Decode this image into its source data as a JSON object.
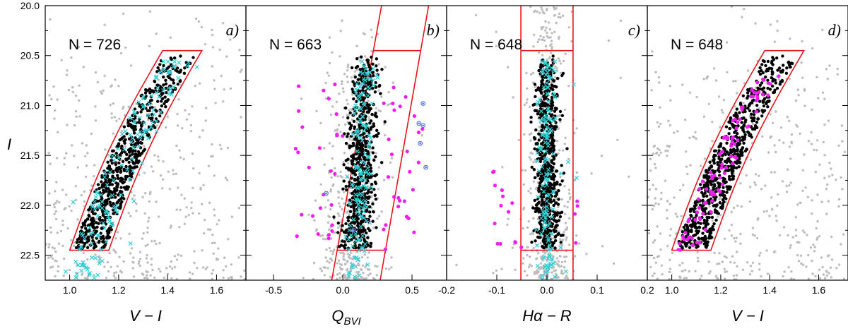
{
  "chart_data": {
    "type": "scatter",
    "figure": "Four-panel color-magnitude selection figure",
    "shared_y": {
      "label": "I",
      "ylim": [
        20.0,
        22.75
      ],
      "inverted": true,
      "ticks": [
        "20.0",
        "20.5",
        "21.0",
        "21.5",
        "22.0",
        "22.5"
      ]
    },
    "panels": [
      {
        "id": "a",
        "panel_label": "a)",
        "count_label": "N = 726",
        "xlabel": "V − I",
        "xlim": [
          0.9,
          1.72
        ],
        "xticks": [
          "1.0",
          "1.2",
          "1.4",
          "1.6"
        ],
        "selection_region": {
          "shape": "curved-band",
          "I_range": [
            20.45,
            22.45
          ],
          "left_edge": [
            [
              1.0,
              22.45
            ],
            [
              1.38,
              20.45
            ]
          ],
          "right_edge": [
            [
              1.16,
              22.45
            ],
            [
              1.54,
              20.45
            ]
          ]
        },
        "series": [
          "field stars (grey)",
          "selected members (black)",
          "known variables (cyan crosses)"
        ]
      },
      {
        "id": "b",
        "panel_label": "b)",
        "count_label": "N = 663",
        "xlabel": "Q",
        "xlabel_sub": "BVI",
        "xlim": [
          -0.7,
          0.75
        ],
        "xticks": [
          "-0.5",
          "0.0",
          "0.5"
        ],
        "selection_region": {
          "shape": "slanted-band",
          "I_range": [
            20.45,
            22.45
          ],
          "left_edge": [
            [
              -0.08,
              22.75
            ],
            [
              0.28,
              20.0
            ]
          ],
          "right_edge": [
            [
              0.27,
              22.75
            ],
            [
              0.62,
              20.0
            ]
          ]
        },
        "series": [
          "field stars (grey)",
          "selected members (black)",
          "known variables (cyan crosses)",
          "rejected (magenta)",
          "rejected (blue circled)"
        ]
      },
      {
        "id": "c",
        "panel_label": "c)",
        "count_label": "N = 648",
        "xlabel": "Hα − R",
        "xlim": [
          -0.2,
          0.2
        ],
        "xticks": [
          "-0.2",
          "-0.1",
          "0.0",
          "0.1",
          "0.2"
        ],
        "selection_region": {
          "shape": "vertical-band",
          "x_range": [
            -0.052,
            0.052
          ],
          "I_range": [
            20.45,
            22.45
          ]
        },
        "series": [
          "field stars (grey)",
          "selected members (black)",
          "known variables (cyan crosses)",
          "rejected (magenta)"
        ]
      },
      {
        "id": "d",
        "panel_label": "d)",
        "count_label": "N = 648",
        "xlabel": "V − I",
        "xlim": [
          0.9,
          1.72
        ],
        "xticks": [
          "1.0",
          "1.2",
          "1.4",
          "1.6"
        ],
        "selection_region": {
          "shape": "curved-band",
          "I_range": [
            20.45,
            22.45
          ],
          "left_edge": [
            [
              1.0,
              22.45
            ],
            [
              1.38,
              20.45
            ]
          ],
          "right_edge": [
            [
              1.16,
              22.45
            ],
            [
              1.54,
              20.45
            ]
          ]
        },
        "series": [
          "field stars (grey)",
          "selected members (black)",
          "H-alpha emitters (magenta)"
        ]
      }
    ],
    "colors": {
      "field": "#bdbdbd",
      "members": "#000000",
      "variables": "#2ccfd6",
      "rejected": "#f01ef0",
      "blue": "#5a78e6",
      "selection": "#e8141c"
    }
  }
}
